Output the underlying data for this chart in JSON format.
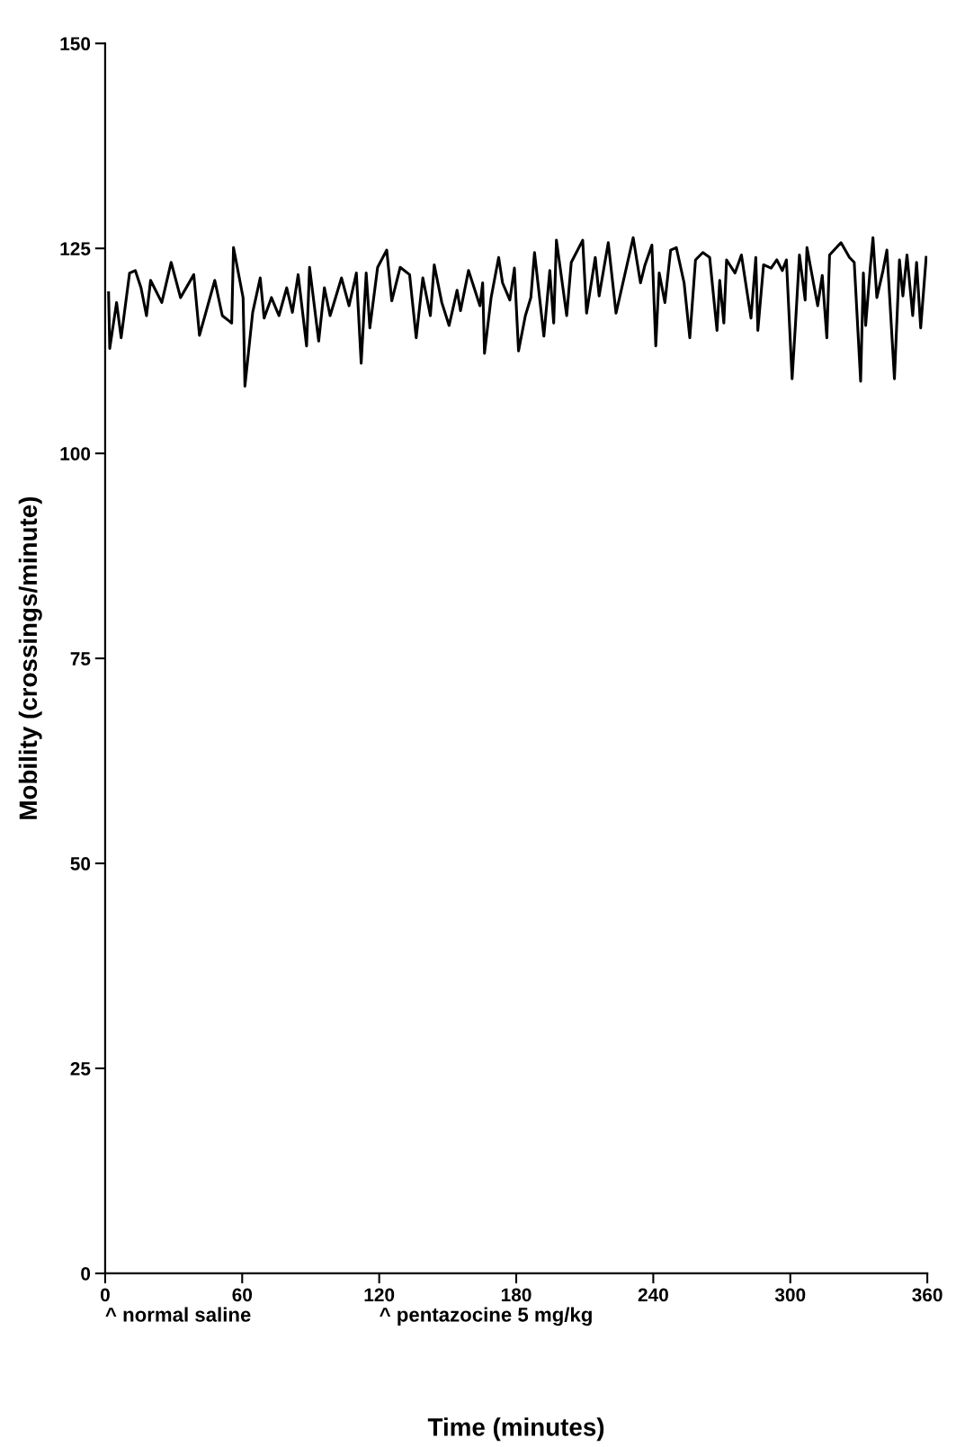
{
  "chart_data": {
    "type": "line",
    "xlabel": "Time (minutes)",
    "ylabel": "Mobility (crossings/minute)",
    "xlim": [
      0,
      360
    ],
    "xticks": [
      0,
      60,
      120,
      180,
      240,
      300,
      360
    ],
    "ylim": [
      0,
      150
    ],
    "yticks": [
      0,
      25,
      50,
      75,
      100,
      125,
      150
    ],
    "grid": false,
    "marker": "none",
    "line_style": "solid",
    "annotations": [
      "^ normal saline",
      "^ pentazocine 5 mg/kg"
    ],
    "series": [
      {
        "color": "#000000",
        "x": [
          1.5,
          2.0,
          5.0,
          7.0,
          10.7,
          13.2,
          15.7,
          18.1,
          19.9,
          24.8,
          28.9,
          33.0,
          38.8,
          41.3,
          48.0,
          51.3,
          55.4,
          56.2,
          60.4,
          61.2,
          64.6,
          67.9,
          69.6,
          72.8,
          76.1,
          79.5,
          82.0,
          84.5,
          88.2,
          89.5,
          93.5,
          96.0,
          98.5,
          103.5,
          106.8,
          110.0,
          112.1,
          114.3,
          115.9,
          119.3,
          123.3,
          125.5,
          129.2,
          133.3,
          136.2,
          139.1,
          142.4,
          144.1,
          147.4,
          150.6,
          154.1,
          155.6,
          159.1,
          164.1,
          165.3,
          166.1,
          169.0,
          172.3,
          174.0,
          177.2,
          179.2,
          181.0,
          184.0,
          186.4,
          188.0,
          192.1,
          194.7,
          196.4,
          197.6,
          202.1,
          204.1,
          209.1,
          210.8,
          214.6,
          216.3,
          220.3,
          223.7,
          231.2,
          234.4,
          236.4,
          239.4,
          241.1,
          242.6,
          245.1,
          247.6,
          250.1,
          253.5,
          256.0,
          258.5,
          261.7,
          264.7,
          267.9,
          269.1,
          270.9,
          272.1,
          275.8,
          278.6,
          282.8,
          284.9,
          285.8,
          288.3,
          291.6,
          294.1,
          296.5,
          298.3,
          300.8,
          302.3,
          304.0,
          306.5,
          307.3,
          312.0,
          314.0,
          316.0,
          317.2,
          322.2,
          325.9,
          328.0,
          330.8,
          332.0,
          333.0,
          335.0,
          336.2,
          337.9,
          340.6,
          342.3,
          345.6,
          347.8,
          349.3,
          351.1,
          353.6,
          355.3,
          357.1,
          359.5
        ],
        "values": [
          119.6,
          112.8,
          118.4,
          114.1,
          122.0,
          122.3,
          120.2,
          116.8,
          121.1,
          118.4,
          123.3,
          119.0,
          121.8,
          114.4,
          121.1,
          116.8,
          115.9,
          125.1,
          119.0,
          108.2,
          117.2,
          121.4,
          116.5,
          119.0,
          116.8,
          120.2,
          117.2,
          121.8,
          113.1,
          122.7,
          113.7,
          120.2,
          116.8,
          121.4,
          118.0,
          122.0,
          111.0,
          122.0,
          115.3,
          122.7,
          124.8,
          118.6,
          122.7,
          121.8,
          114.1,
          121.4,
          116.8,
          123.0,
          118.4,
          115.6,
          119.9,
          117.4,
          122.3,
          118.0,
          120.8,
          112.2,
          119.0,
          123.9,
          120.8,
          118.7,
          122.6,
          112.5,
          116.8,
          119.0,
          124.5,
          114.3,
          122.3,
          115.9,
          126.0,
          116.8,
          123.3,
          126.0,
          117.1,
          123.9,
          119.2,
          125.7,
          117.1,
          126.3,
          120.8,
          123.0,
          125.4,
          113.1,
          122.0,
          118.4,
          124.8,
          125.1,
          120.8,
          114.1,
          123.6,
          124.5,
          123.9,
          115.0,
          121.1,
          115.9,
          123.6,
          122.0,
          124.2,
          116.5,
          123.9,
          115.0,
          123.0,
          122.6,
          123.6,
          122.3,
          123.6,
          109.1,
          115.9,
          124.2,
          118.7,
          125.1,
          118.0,
          121.7,
          114.1,
          124.2,
          125.7,
          123.9,
          123.3,
          108.8,
          122.0,
          115.6,
          122.6,
          126.3,
          119.0,
          122.3,
          124.8,
          109.1,
          123.6,
          119.2,
          124.2,
          116.8,
          123.3,
          115.3,
          123.9
        ]
      }
    ]
  }
}
